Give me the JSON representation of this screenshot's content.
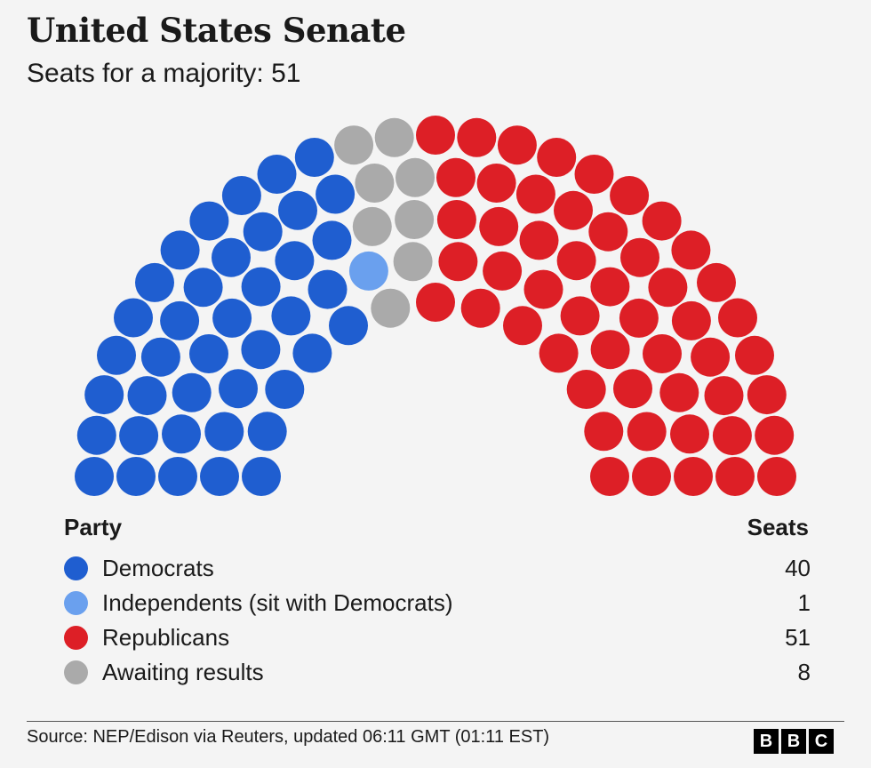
{
  "header": {
    "title": "United States Senate",
    "subtitle": "Seats for a majority: 51"
  },
  "legend": {
    "party_heading": "Party",
    "seats_heading": "Seats",
    "items": [
      {
        "label": "Democrats",
        "seats": "40",
        "color": "#1f5ed0"
      },
      {
        "label": "Independents (sit with Democrats)",
        "seats": "1",
        "color": "#6aa0ee"
      },
      {
        "label": "Republicans",
        "seats": "51",
        "color": "#dd1f26"
      },
      {
        "label": "Awaiting results",
        "seats": "8",
        "color": "#aaaaaa"
      }
    ]
  },
  "footer": {
    "source": "Source: NEP/Edison via Reuters, updated 06:11 GMT (01:11 EST)",
    "logo_letters": [
      "B",
      "B",
      "C"
    ]
  },
  "chart_data": {
    "type": "parliament",
    "total_seats": 100,
    "majority": 51,
    "series": [
      {
        "name": "Democrats",
        "values": [
          40
        ],
        "color": "#1f5ed0"
      },
      {
        "name": "Independents (sit with Democrats)",
        "values": [
          1
        ],
        "color": "#6aa0ee"
      },
      {
        "name": "Awaiting results",
        "values": [
          8
        ],
        "color": "#aaaaaa"
      },
      {
        "name": "Republicans",
        "values": [
          51
        ],
        "color": "#dd1f26"
      }
    ]
  }
}
